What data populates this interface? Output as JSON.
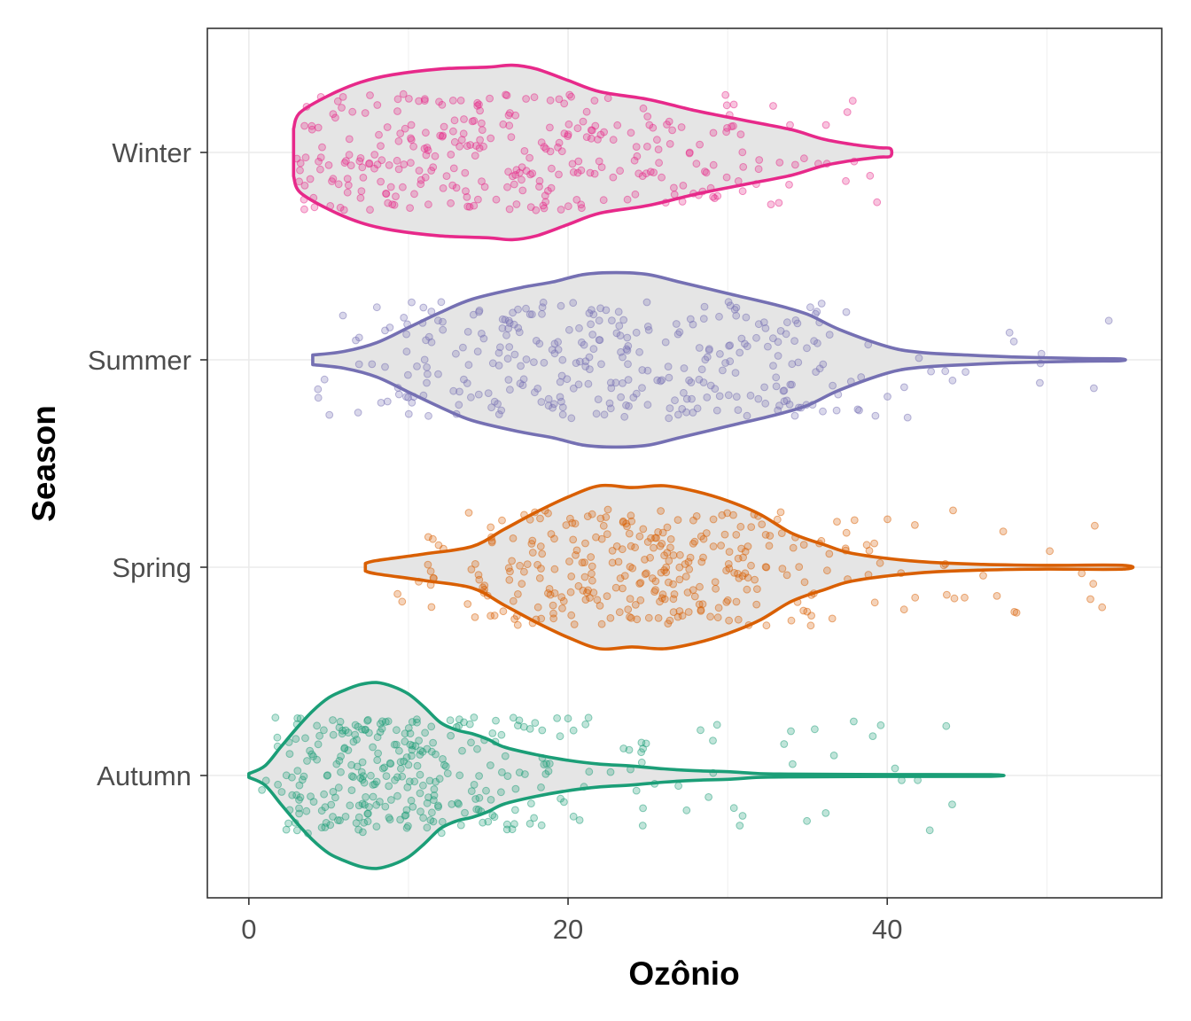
{
  "chart_data": {
    "type": "violin",
    "xlabel": "Ozônio",
    "ylabel": "Season",
    "xlim": [
      -2.6,
      57.2
    ],
    "xticks": [
      0,
      20,
      40
    ],
    "grid": true,
    "legend": "none",
    "categories": [
      "Winter",
      "Summer",
      "Spring",
      "Autumn"
    ],
    "series": [
      {
        "name": "Winter",
        "color": "#e7298a",
        "range": [
          2.8,
          40.2
        ],
        "n_points": 320,
        "density": [
          [
            2.8,
            0.25
          ],
          [
            3.2,
            0.42
          ],
          [
            5,
            0.6
          ],
          [
            7,
            0.74
          ],
          [
            9,
            0.82
          ],
          [
            12,
            0.88
          ],
          [
            15,
            0.9
          ],
          [
            16.5,
            0.92
          ],
          [
            18,
            0.88
          ],
          [
            20,
            0.76
          ],
          [
            22,
            0.64
          ],
          [
            25,
            0.56
          ],
          [
            28,
            0.44
          ],
          [
            31,
            0.34
          ],
          [
            34,
            0.24
          ],
          [
            36,
            0.14
          ],
          [
            38,
            0.08
          ],
          [
            39.5,
            0.05
          ],
          [
            40.2,
            0.04
          ]
        ]
      },
      {
        "name": "Summer",
        "color": "#7570b3",
        "range": [
          4.0,
          54.6
        ],
        "n_points": 330,
        "density": [
          [
            4,
            0.05
          ],
          [
            6,
            0.09
          ],
          [
            8,
            0.18
          ],
          [
            10,
            0.34
          ],
          [
            12,
            0.5
          ],
          [
            14,
            0.64
          ],
          [
            17,
            0.76
          ],
          [
            19,
            0.82
          ],
          [
            21,
            0.9
          ],
          [
            23,
            0.92
          ],
          [
            25,
            0.9
          ],
          [
            27,
            0.82
          ],
          [
            30,
            0.7
          ],
          [
            33,
            0.58
          ],
          [
            35,
            0.48
          ],
          [
            37,
            0.32
          ],
          [
            40,
            0.14
          ],
          [
            42,
            0.08
          ],
          [
            45,
            0.05
          ],
          [
            48,
            0.03
          ],
          [
            52,
            0.015
          ],
          [
            54.6,
            0.01
          ]
        ]
      },
      {
        "name": "Spring",
        "color": "#d95f02",
        "range": [
          7.3,
          54.8
        ],
        "n_points": 330,
        "density": [
          [
            7.3,
            0.04
          ],
          [
            8,
            0.07
          ],
          [
            11,
            0.14
          ],
          [
            14,
            0.22
          ],
          [
            16,
            0.4
          ],
          [
            18,
            0.58
          ],
          [
            20,
            0.74
          ],
          [
            22,
            0.86
          ],
          [
            24,
            0.84
          ],
          [
            26,
            0.86
          ],
          [
            28,
            0.8
          ],
          [
            30,
            0.7
          ],
          [
            32,
            0.56
          ],
          [
            34,
            0.36
          ],
          [
            36,
            0.24
          ],
          [
            38,
            0.14
          ],
          [
            42,
            0.06
          ],
          [
            46,
            0.03
          ],
          [
            50,
            0.02
          ],
          [
            54.8,
            0.02
          ]
        ]
      },
      {
        "name": "Autumn",
        "color": "#1b9e77",
        "range": [
          0.0,
          46.5
        ],
        "n_points": 330,
        "density": [
          [
            0,
            0.02
          ],
          [
            1,
            0.1
          ],
          [
            2,
            0.3
          ],
          [
            3,
            0.5
          ],
          [
            4,
            0.68
          ],
          [
            5,
            0.82
          ],
          [
            6,
            0.9
          ],
          [
            7,
            0.96
          ],
          [
            8,
            0.98
          ],
          [
            9,
            0.94
          ],
          [
            10,
            0.86
          ],
          [
            11,
            0.72
          ],
          [
            12,
            0.56
          ],
          [
            13,
            0.48
          ],
          [
            14,
            0.44
          ],
          [
            15,
            0.38
          ],
          [
            16,
            0.3
          ],
          [
            18,
            0.22
          ],
          [
            20,
            0.16
          ],
          [
            22,
            0.12
          ],
          [
            24,
            0.1
          ],
          [
            26,
            0.07
          ],
          [
            28,
            0.05
          ],
          [
            30,
            0.04
          ],
          [
            32,
            0.02
          ],
          [
            34,
            0.015
          ],
          [
            40,
            0.01
          ],
          [
            46.5,
            0.008
          ]
        ]
      }
    ]
  }
}
